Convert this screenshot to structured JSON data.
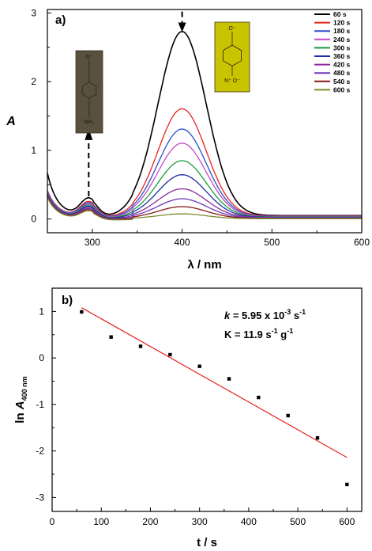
{
  "chart_data": [
    {
      "type": "line",
      "panel_label": "a)",
      "xlabel": "λ / nm",
      "ylabel": "A",
      "xlim": [
        250,
        600
      ],
      "ylim": [
        -0.2,
        3.05
      ],
      "xticks": [
        300,
        400,
        500,
        600
      ],
      "yticks": [
        0,
        1,
        2,
        3
      ],
      "legend_position": "top-right",
      "insets": [
        {
          "kind": "vial-photo",
          "color": "#5a5040",
          "molecule_top": "O⁻",
          "molecule_bottom": "NH₂",
          "arrow": "up",
          "arrow_at_x": 296
        },
        {
          "kind": "vial-photo",
          "color": "#c8c400",
          "molecule_top": "O⁻",
          "molecule_bottom": "N⁺ O⁻",
          "arrow": "down",
          "arrow_at_x": 400
        }
      ],
      "series": [
        {
          "name": "60 s",
          "color": "#000000",
          "peak": 2.68
        },
        {
          "name": "120 s",
          "color": "#e8231f",
          "peak": 1.56
        },
        {
          "name": "180 s",
          "color": "#2a4ec8",
          "peak": 1.27
        },
        {
          "name": "240 s",
          "color": "#c04ac8",
          "peak": 1.07
        },
        {
          "name": "300 s",
          "color": "#1a9a3a",
          "peak": 0.82
        },
        {
          "name": "360 s",
          "color": "#1c2fa4",
          "peak": 0.62
        },
        {
          "name": "420 s",
          "color": "#8a2a9c",
          "peak": 0.42
        },
        {
          "name": "480 s",
          "color": "#6a3ab8",
          "peak": 0.28
        },
        {
          "name": "540 s",
          "color": "#8a1818",
          "peak": 0.17
        },
        {
          "name": "600 s",
          "color": "#7a8a2a",
          "peak": 0.07
        }
      ]
    },
    {
      "type": "scatter",
      "panel_label": "b)",
      "xlabel": "t / s",
      "ylabel_main": "ln ",
      "ylabel_italic": "A",
      "ylabel_sub": "400 nm",
      "xlim": [
        0,
        630
      ],
      "ylim": [
        -3.3,
        1.5
      ],
      "xticks": [
        0,
        100,
        200,
        300,
        400,
        500,
        600
      ],
      "yticks": [
        1,
        0,
        -1,
        -2,
        -3
      ],
      "points": [
        {
          "x": 60,
          "y": 0.99
        },
        {
          "x": 120,
          "y": 0.45
        },
        {
          "x": 180,
          "y": 0.25
        },
        {
          "x": 240,
          "y": 0.07
        },
        {
          "x": 300,
          "y": -0.18
        },
        {
          "x": 360,
          "y": -0.45
        },
        {
          "x": 420,
          "y": -0.85
        },
        {
          "x": 480,
          "y": -1.24
        },
        {
          "x": 540,
          "y": -1.72
        },
        {
          "x": 600,
          "y": -2.72
        }
      ],
      "fit_line": {
        "x": [
          60,
          600
        ],
        "y": [
          1.08,
          -2.14
        ],
        "color": "#e8231f"
      },
      "annotation_k": {
        "italic": "k",
        "text": " = 5.95 x 10",
        "sup": "-3",
        "unit": " s",
        "unit_sup": "-1"
      },
      "annotation_K": {
        "text": "K = 11.9 s",
        "sup1": "-1",
        "mid": " g",
        "sup2": "-1"
      }
    }
  ]
}
